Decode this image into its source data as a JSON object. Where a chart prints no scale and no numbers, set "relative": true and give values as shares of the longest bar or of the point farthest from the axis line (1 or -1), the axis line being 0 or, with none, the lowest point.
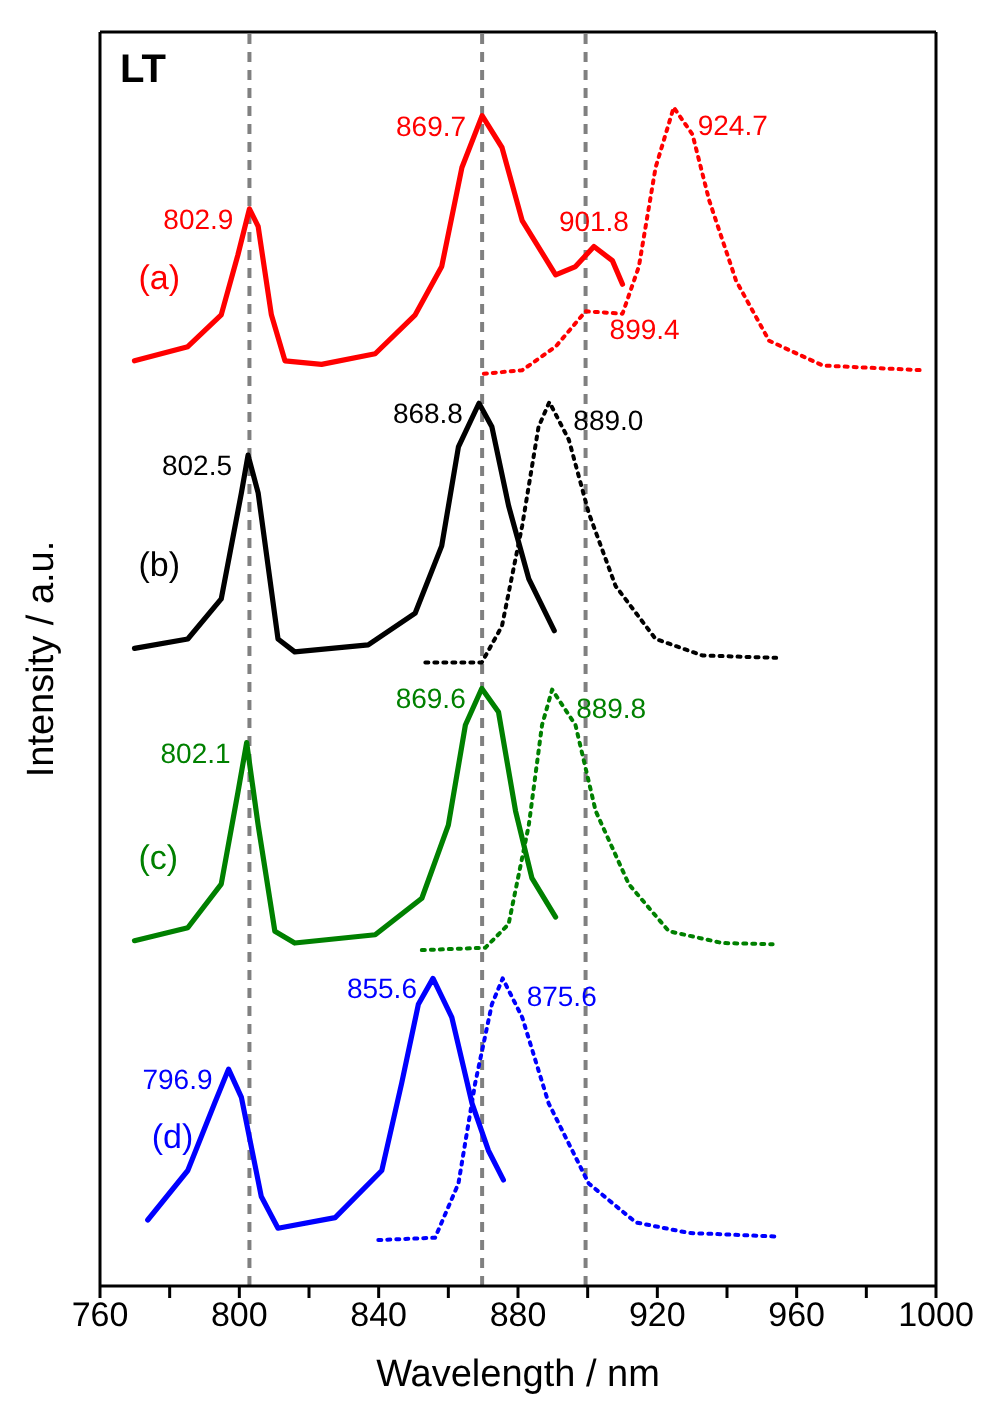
{
  "chart_data": {
    "type": "line",
    "title": "LT",
    "xlabel": "Wavelength / nm",
    "ylabel": "Intensity / a.u.",
    "relative": true,
    "xlim": [
      760,
      1000
    ],
    "xticks": [
      760,
      {
        "value": 780,
        "label": null
      },
      800,
      {
        "value": 820,
        "label": null
      },
      840,
      {
        "value": 860,
        "label": null
      },
      880,
      {
        "value": 900,
        "label": null
      },
      920,
      {
        "value": 940,
        "label": null
      },
      960,
      {
        "value": 980,
        "label": null
      },
      1000
    ],
    "series": [
      {
        "name": "(a)",
        "color": "#ff0000",
        "line_style": "solid",
        "x": [
          769.9,
          785.2,
          794.8,
          799.6,
          802.9,
          805.4,
          809.2,
          813.1,
          823.6,
          839.0,
          850.5,
          858.1,
          863.9,
          869.7,
          875.4,
          881.2,
          890.8,
          896.5,
          901.8,
          907.1,
          910.0
        ],
        "values": [
          0.785,
          0.797,
          0.824,
          0.875,
          0.914,
          0.899,
          0.824,
          0.785,
          0.782,
          0.791,
          0.824,
          0.865,
          0.949,
          0.993,
          0.966,
          0.904,
          0.858,
          0.865,
          0.882,
          0.87,
          0.85
        ]
      },
      {
        "color": "#ff0000",
        "line_style": "dotted",
        "x": [
          870.2,
          881.2,
          890.8,
          899.4,
          910.0,
          914.7,
          919.5,
          924.7,
          930.1,
          934.9,
          942.6,
          952.1,
          967.5,
          996.3
        ],
        "values": [
          0.774,
          0.777,
          0.797,
          0.827,
          0.825,
          0.865,
          0.949,
          1.0,
          0.977,
          0.921,
          0.853,
          0.802,
          0.781,
          0.777
        ]
      },
      {
        "name": "(b)",
        "color": "#000000",
        "line_style": "solid",
        "x": [
          769.9,
          785.2,
          794.8,
          800.6,
          802.5,
          805.4,
          811.1,
          815.9,
          837.0,
          850.5,
          858.1,
          862.9,
          868.8,
          872.5,
          877.3,
          883.1,
          890.4
        ],
        "values": [
          0.541,
          0.549,
          0.583,
          0.673,
          0.705,
          0.673,
          0.549,
          0.538,
          0.544,
          0.571,
          0.628,
          0.712,
          0.749,
          0.729,
          0.662,
          0.6,
          0.556
        ]
      },
      {
        "color": "#000000",
        "line_style": "dotted",
        "x": [
          853.4,
          869.6,
          875.4,
          881.2,
          885.9,
          889.0,
          894.6,
          900.3,
          908.0,
          919.5,
          932.9,
          954.1
        ],
        "values": [
          0.529,
          0.529,
          0.56,
          0.645,
          0.729,
          0.75,
          0.718,
          0.656,
          0.594,
          0.549,
          0.535,
          0.533
        ]
      },
      {
        "name": "(c)",
        "color": "#008000",
        "line_style": "solid",
        "x": [
          769.9,
          785.2,
          794.8,
          799.6,
          802.1,
          805.4,
          810.2,
          815.9,
          839.0,
          852.4,
          860.0,
          864.9,
          869.6,
          874.4,
          879.3,
          884.0,
          890.8
        ],
        "values": [
          0.293,
          0.304,
          0.341,
          0.419,
          0.461,
          0.391,
          0.301,
          0.291,
          0.298,
          0.329,
          0.391,
          0.476,
          0.507,
          0.487,
          0.403,
          0.346,
          0.313
        ]
      },
      {
        "color": "#008000",
        "line_style": "dotted",
        "x": [
          852.4,
          870.6,
          877.3,
          883.1,
          886.9,
          889.8,
          896.5,
          902.3,
          911.8,
          923.3,
          938.7,
          953.1
        ],
        "values": [
          0.285,
          0.287,
          0.307,
          0.391,
          0.476,
          0.506,
          0.476,
          0.403,
          0.341,
          0.301,
          0.291,
          0.29
        ]
      },
      {
        "name": "(d)",
        "color": "#0000ff",
        "line_style": "solid",
        "x": [
          773.7,
          785.2,
          792.9,
          796.9,
          800.6,
          806.3,
          811.1,
          827.5,
          840.9,
          846.6,
          851.4,
          855.6,
          861.0,
          866.8,
          871.5,
          875.8
        ],
        "values": [
          0.056,
          0.098,
          0.155,
          0.184,
          0.16,
          0.076,
          0.049,
          0.058,
          0.098,
          0.172,
          0.239,
          0.261,
          0.228,
          0.155,
          0.115,
          0.09
        ]
      },
      {
        "color": "#0000ff",
        "line_style": "dotted",
        "x": [
          839.9,
          856.2,
          862.9,
          867.7,
          872.5,
          875.6,
          881.2,
          888.8,
          900.3,
          913.8,
          929.1,
          954.1
        ],
        "values": [
          0.039,
          0.041,
          0.087,
          0.172,
          0.239,
          0.261,
          0.228,
          0.155,
          0.087,
          0.054,
          0.045,
          0.042
        ]
      }
    ],
    "ref_lines": [
      {
        "axis": "x",
        "value": 802.9,
        "color": "#808080",
        "line_style": "dashed"
      },
      {
        "axis": "x",
        "value": 869.7,
        "color": "#808080",
        "line_style": "dashed"
      },
      {
        "axis": "x",
        "value": 899.4,
        "color": "#808080",
        "line_style": "dashed"
      }
    ],
    "annotations": [
      {
        "text": "802.9",
        "x": 802.9,
        "y": 0.914
      },
      {
        "text": "869.7",
        "x": 869.7,
        "y": 0.993
      },
      {
        "text": "901.8",
        "x": 901.8,
        "y": 0.882
      },
      {
        "text": "924.7",
        "x": 924.7,
        "y": 1.0
      },
      {
        "text": "899.4",
        "x": 899.4,
        "y": 0.827
      },
      {
        "text": "802.5",
        "x": 802.5,
        "y": 0.705
      },
      {
        "text": "868.8",
        "x": 868.8,
        "y": 0.749
      },
      {
        "text": "889.0",
        "x": 889.0,
        "y": 0.75
      },
      {
        "text": "802.1",
        "x": 802.1,
        "y": 0.461
      },
      {
        "text": "869.6",
        "x": 869.6,
        "y": 0.507
      },
      {
        "text": "889.8",
        "x": 889.8,
        "y": 0.506
      },
      {
        "text": "796.9",
        "x": 796.9,
        "y": 0.184
      },
      {
        "text": "855.6",
        "x": 855.6,
        "y": 0.261
      },
      {
        "text": "875.6",
        "x": 875.6,
        "y": 0.261
      }
    ]
  }
}
